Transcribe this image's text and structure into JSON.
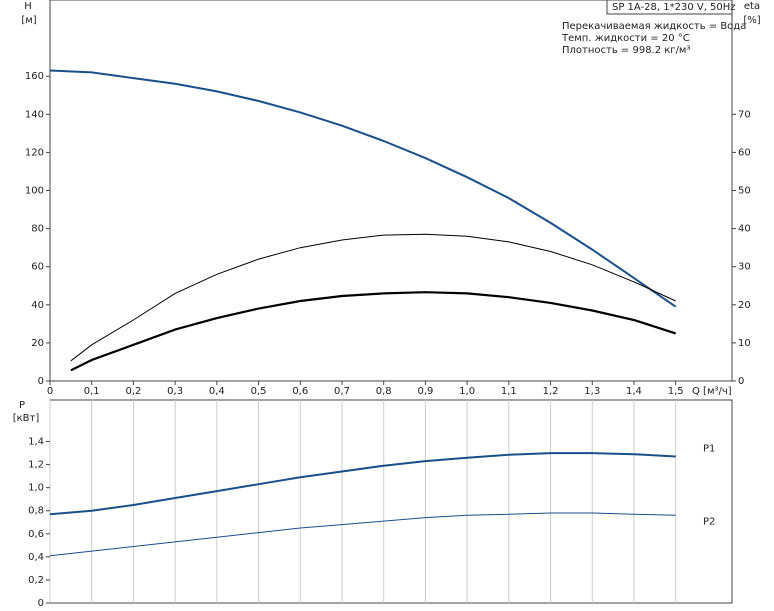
{
  "chart_data": [
    {
      "type": "line",
      "info_box": "SP 1A-28, 1*230 V, 50Hz",
      "notes": [
        "Перекачиваемая жидкость = Вода",
        "Темп. жидкости = 20 °C",
        "Плотность = 998.2 кг/м³"
      ],
      "ylabel": "H",
      "yunit": "[м]",
      "y2label": "eta",
      "y2unit": "[%]",
      "xlabel": "Q [м³/ч]",
      "xlim": [
        0,
        1.635
      ],
      "ylim": [
        0,
        200
      ],
      "y2lim": [
        0,
        100
      ],
      "grid": false,
      "xticks": [
        0,
        {
          "value": 0.1,
          "label": "0,1"
        },
        {
          "value": 0.2,
          "label": "0,2"
        },
        {
          "value": 0.3,
          "label": "0,3"
        },
        {
          "value": 0.4,
          "label": "0,4"
        },
        {
          "value": 0.5,
          "label": "0,5"
        },
        {
          "value": 0.6,
          "label": "0,6"
        },
        {
          "value": 0.7,
          "label": "0,7"
        },
        {
          "value": 0.8,
          "label": "0,8"
        },
        {
          "value": 0.9,
          "label": "0,9"
        },
        {
          "value": 1.0,
          "label": "1,0"
        },
        {
          "value": 1.1,
          "label": "1,1"
        },
        {
          "value": 1.2,
          "label": "1,2"
        },
        {
          "value": 1.3,
          "label": "1,3"
        },
        {
          "value": 1.4,
          "label": "1,4"
        },
        {
          "value": 1.5,
          "label": "1,5"
        }
      ],
      "yticks": [
        0,
        20,
        40,
        60,
        80,
        100,
        120,
        140,
        160
      ],
      "y2ticks": [
        0,
        10,
        20,
        30,
        40,
        50,
        60,
        70
      ],
      "series": [
        {
          "color": "#1a4f8a",
          "width": 2,
          "x": [
            0,
            0.1,
            0.2,
            0.3,
            0.4,
            0.5,
            0.6,
            0.7,
            0.8,
            0.9,
            1.0,
            1.1,
            1.2,
            1.3,
            1.4,
            1.5
          ],
          "values": [
            163,
            162,
            159,
            156,
            152,
            147,
            141,
            134,
            126,
            117,
            107,
            96,
            83,
            69,
            54,
            39
          ]
        },
        {
          "color": "#000000",
          "width": 1,
          "axis": "y2",
          "x": [
            0.05,
            0.1,
            0.2,
            0.3,
            0.4,
            0.5,
            0.6,
            0.7,
            0.8,
            0.9,
            1.0,
            1.1,
            1.2,
            1.3,
            1.4,
            1.5
          ],
          "values": [
            5.3,
            9.5,
            16,
            23,
            28,
            32,
            35,
            37,
            38.3,
            38.5,
            38,
            36.5,
            34,
            30.5,
            26,
            21
          ]
        },
        {
          "color": "#000000",
          "width": 2.2,
          "axis": "y2",
          "x": [
            0.05,
            0.1,
            0.2,
            0.3,
            0.4,
            0.5,
            0.6,
            0.7,
            0.8,
            0.9,
            1.0,
            1.1,
            1.2,
            1.3,
            1.4,
            1.5
          ],
          "values": [
            2.8,
            5.5,
            9.5,
            13.5,
            16.5,
            19,
            21,
            22.3,
            23,
            23.3,
            23,
            22,
            20.5,
            18.5,
            16,
            12.5
          ]
        }
      ]
    },
    {
      "type": "line",
      "ylabel": "P",
      "yunit": "[кВт]",
      "xlim": [
        0,
        1.635
      ],
      "ylim": [
        0,
        1.76
      ],
      "grid": true,
      "yticks": [
        0,
        {
          "value": 0.2,
          "label": "0,2"
        },
        {
          "value": 0.4,
          "label": "0,4"
        },
        {
          "value": 0.6,
          "label": "0,6"
        },
        {
          "value": 0.8,
          "label": "0,8"
        },
        {
          "value": 1.0,
          "label": "1,0"
        },
        {
          "value": 1.2,
          "label": "1,2"
        },
        {
          "value": 1.4,
          "label": "1,4"
        }
      ],
      "series": [
        {
          "name": "P1",
          "color": "#1a4f8a",
          "width": 2,
          "x": [
            0,
            0.1,
            0.2,
            0.3,
            0.4,
            0.5,
            0.6,
            0.7,
            0.8,
            0.9,
            1.0,
            1.1,
            1.2,
            1.3,
            1.4,
            1.5
          ],
          "values": [
            0.77,
            0.8,
            0.85,
            0.91,
            0.97,
            1.03,
            1.09,
            1.14,
            1.19,
            1.23,
            1.26,
            1.285,
            1.3,
            1.3,
            1.29,
            1.27
          ]
        },
        {
          "name": "P2",
          "color": "#1a4f8a",
          "width": 1,
          "x": [
            0,
            0.1,
            0.2,
            0.3,
            0.4,
            0.5,
            0.6,
            0.7,
            0.8,
            0.9,
            1.0,
            1.1,
            1.2,
            1.3,
            1.4,
            1.5
          ],
          "values": [
            0.41,
            0.45,
            0.49,
            0.53,
            0.57,
            0.61,
            0.65,
            0.68,
            0.71,
            0.74,
            0.76,
            0.77,
            0.78,
            0.78,
            0.77,
            0.76
          ]
        }
      ]
    }
  ]
}
